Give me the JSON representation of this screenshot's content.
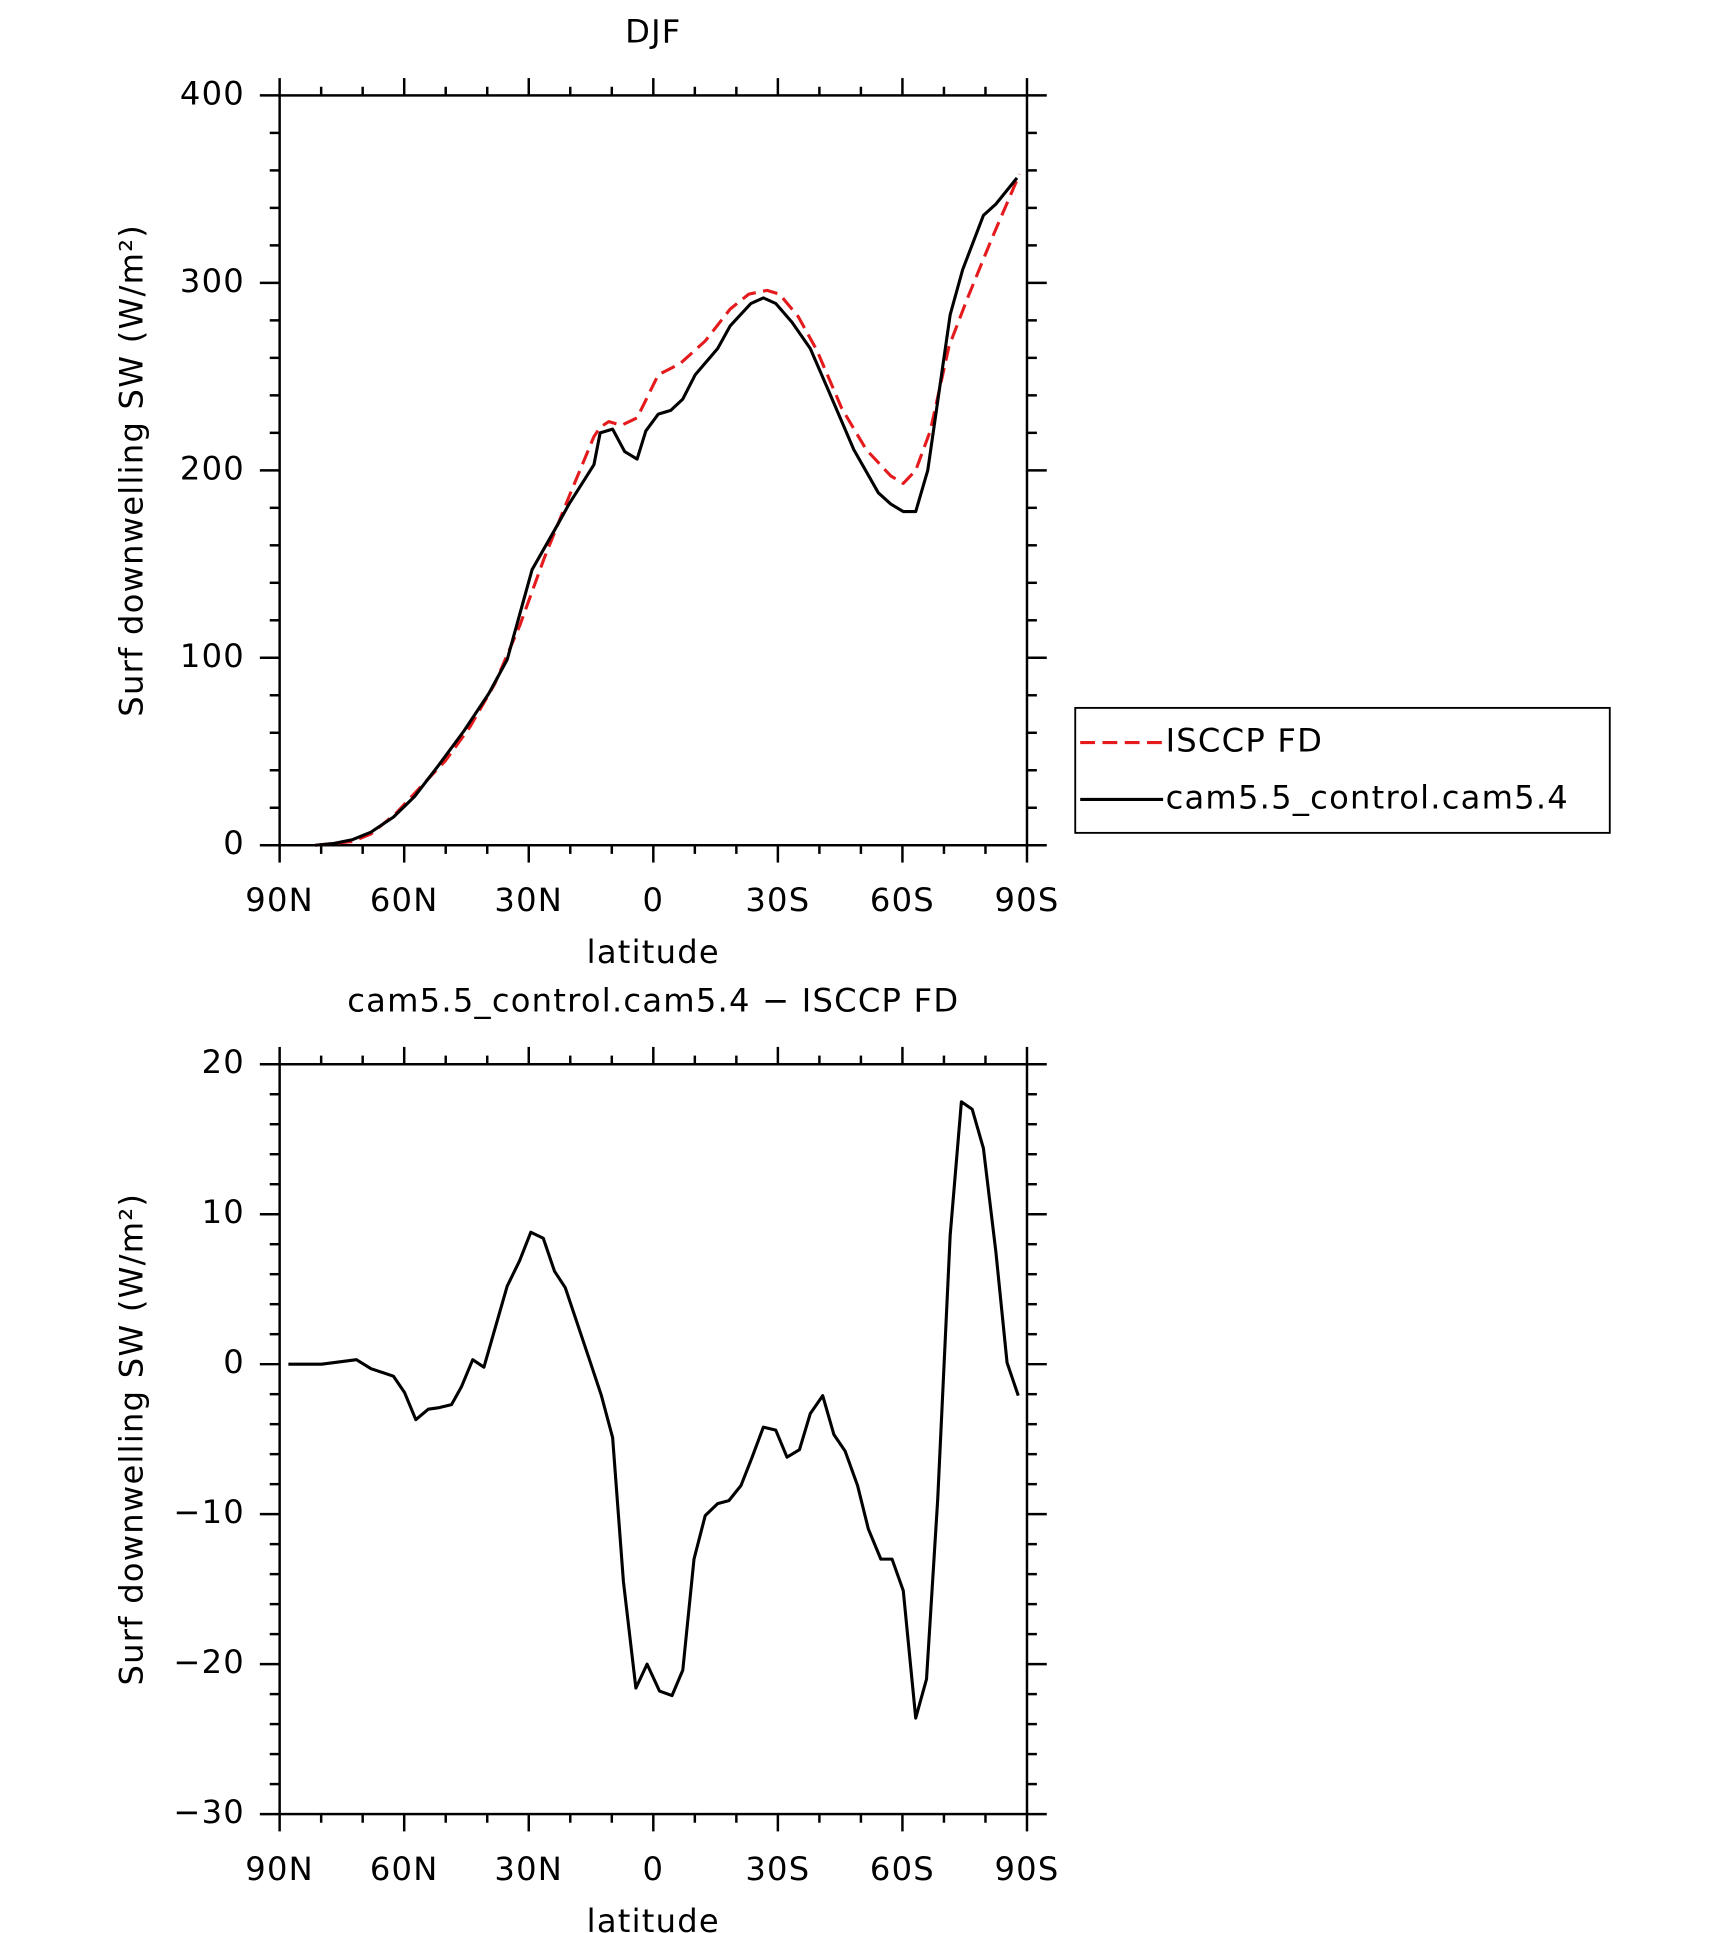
{
  "chart_data": [
    {
      "type": "line",
      "title": "DJF",
      "xlabel": "latitude",
      "ylabel": "Surf downwelling SW (W/m²)",
      "xlim": [
        90,
        -90
      ],
      "xticks": [
        {
          "value": 90,
          "label": "90N"
        },
        {
          "value": 60,
          "label": "60N"
        },
        {
          "value": 30,
          "label": "30N"
        },
        0,
        {
          "value": -30,
          "label": "30S"
        },
        {
          "value": -60,
          "label": "60S"
        },
        {
          "value": -90,
          "label": "90S"
        }
      ],
      "ylim": [
        0,
        400
      ],
      "yticks": [
        0,
        100,
        200,
        300,
        400
      ],
      "legend": "right",
      "series": [
        {
          "name": "ISCCP FD",
          "color": "#e41a1c",
          "dashed": true,
          "x": [
            81.4,
            72.4,
            68,
            62,
            56.1,
            50.1,
            44.2,
            38.2,
            32.2,
            26.3,
            20.3,
            14.3,
            12.8,
            10.7,
            7.7,
            3.9,
            -1.2,
            -6.5,
            -12.5,
            -18.5,
            -23,
            -27.4,
            -30.4,
            -34.9,
            -39.4,
            -45.4,
            -51.3,
            -57.2,
            -60.2,
            -63.2,
            -66.7,
            -71.2,
            -75.7,
            -81.6,
            -88.2
          ],
          "values": [
            0,
            2,
            6,
            17,
            31,
            45,
            63,
            86,
            117,
            153,
            186,
            218,
            223,
            226,
            224,
            228,
            251,
            257,
            269,
            286,
            294,
            296,
            294,
            282,
            264,
            233,
            211,
            197,
            193,
            200,
            221,
            266,
            292,
            324,
            358
          ]
        },
        {
          "name": "cam5.5_control.cam5.4",
          "color": "#000000",
          "dashed": false,
          "x": [
            81.4,
            76.9,
            72.4,
            68,
            62.6,
            57.5,
            51.6,
            45.6,
            39.6,
            35.2,
            29.2,
            23.3,
            20.3,
            14.3,
            12.8,
            9.8,
            6.9,
            3.9,
            1.8,
            -1.2,
            -4.2,
            -7.1,
            -10.1,
            -15.5,
            -18.5,
            -23.5,
            -26.5,
            -29.5,
            -33.4,
            -37.8,
            -42.3,
            -48.3,
            -54.2,
            -57.2,
            -60.2,
            -63.2,
            -66.1,
            -71.5,
            -74.5,
            -79.5,
            -82.5,
            -87.6
          ],
          "values": [
            0,
            1,
            3,
            7,
            15,
            26,
            43,
            61,
            81,
            99,
            147,
            170,
            182,
            203,
            220,
            222,
            210,
            206,
            221,
            230,
            232,
            238,
            251,
            265,
            277,
            289,
            292,
            289,
            279,
            265,
            242,
            211,
            188,
            182,
            178,
            178,
            200,
            283,
            307,
            336,
            342,
            356
          ]
        }
      ]
    },
    {
      "type": "line",
      "title": "cam5.5_control.cam5.4 − ISCCP FD",
      "xlabel": "latitude",
      "ylabel": "Surf downwelling SW (W/m²)",
      "xlim": [
        90,
        -90
      ],
      "xticks": [
        {
          "value": 90,
          "label": "90N"
        },
        {
          "value": 60,
          "label": "60N"
        },
        {
          "value": 30,
          "label": "30N"
        },
        0,
        {
          "value": -30,
          "label": "30S"
        },
        {
          "value": -60,
          "label": "60S"
        },
        {
          "value": -90,
          "label": "90S"
        }
      ],
      "ylim": [
        -30,
        20
      ],
      "yticks": [
        {
          "value": -30,
          "label": "−30"
        },
        {
          "value": -20,
          "label": "−20"
        },
        {
          "value": -10,
          "label": "−10"
        },
        0,
        10,
        20
      ],
      "series": [
        {
          "color": "#000000",
          "dashed": false,
          "x": [
            87.9,
            79.9,
            71.5,
            68,
            62.6,
            59.9,
            57.2,
            54.2,
            51.6,
            48.6,
            46.2,
            43.5,
            40.8,
            35.2,
            32.2,
            29.5,
            26.5,
            23.8,
            21.2,
            15.5,
            12.5,
            9.8,
            7.2,
            4.2,
            1.5,
            -1.5,
            -4.5,
            -7.1,
            -9.8,
            -12.5,
            -15.5,
            -18.2,
            -21.1,
            -23.8,
            -26.5,
            -29.5,
            -32.2,
            -35.2,
            -37.8,
            -40.8,
            -43.5,
            -46.2,
            -49.2,
            -51.8,
            -54.8,
            -57.5,
            -60.2,
            -63.2,
            -65.8,
            -68.5,
            -71.5,
            -74.2,
            -76.8,
            -79.5,
            -82.5,
            -85.2,
            -87.9
          ],
          "values": [
            0,
            0,
            0.3,
            -0.3,
            -0.8,
            -1.9,
            -3.7,
            -3.0,
            -2.9,
            -2.7,
            -1.5,
            0.3,
            -0.2,
            5.2,
            6.9,
            8.8,
            8.4,
            6.2,
            5.1,
            0.4,
            -2.1,
            -4.9,
            -14.5,
            -21.6,
            -20.0,
            -21.8,
            -22.1,
            -20.4,
            -13.0,
            -10.1,
            -9.3,
            -9.1,
            -8.1,
            -6.2,
            -4.2,
            -4.4,
            -6.2,
            -5.7,
            -3.3,
            -2.1,
            -4.7,
            -5.8,
            -8.1,
            -11.0,
            -13.0,
            -13.0,
            -15.1,
            -23.6,
            -21.0,
            -9.0,
            8.6,
            17.5,
            17.0,
            14.4,
            7.5,
            0.1,
            -2.1
          ]
        }
      ]
    }
  ]
}
